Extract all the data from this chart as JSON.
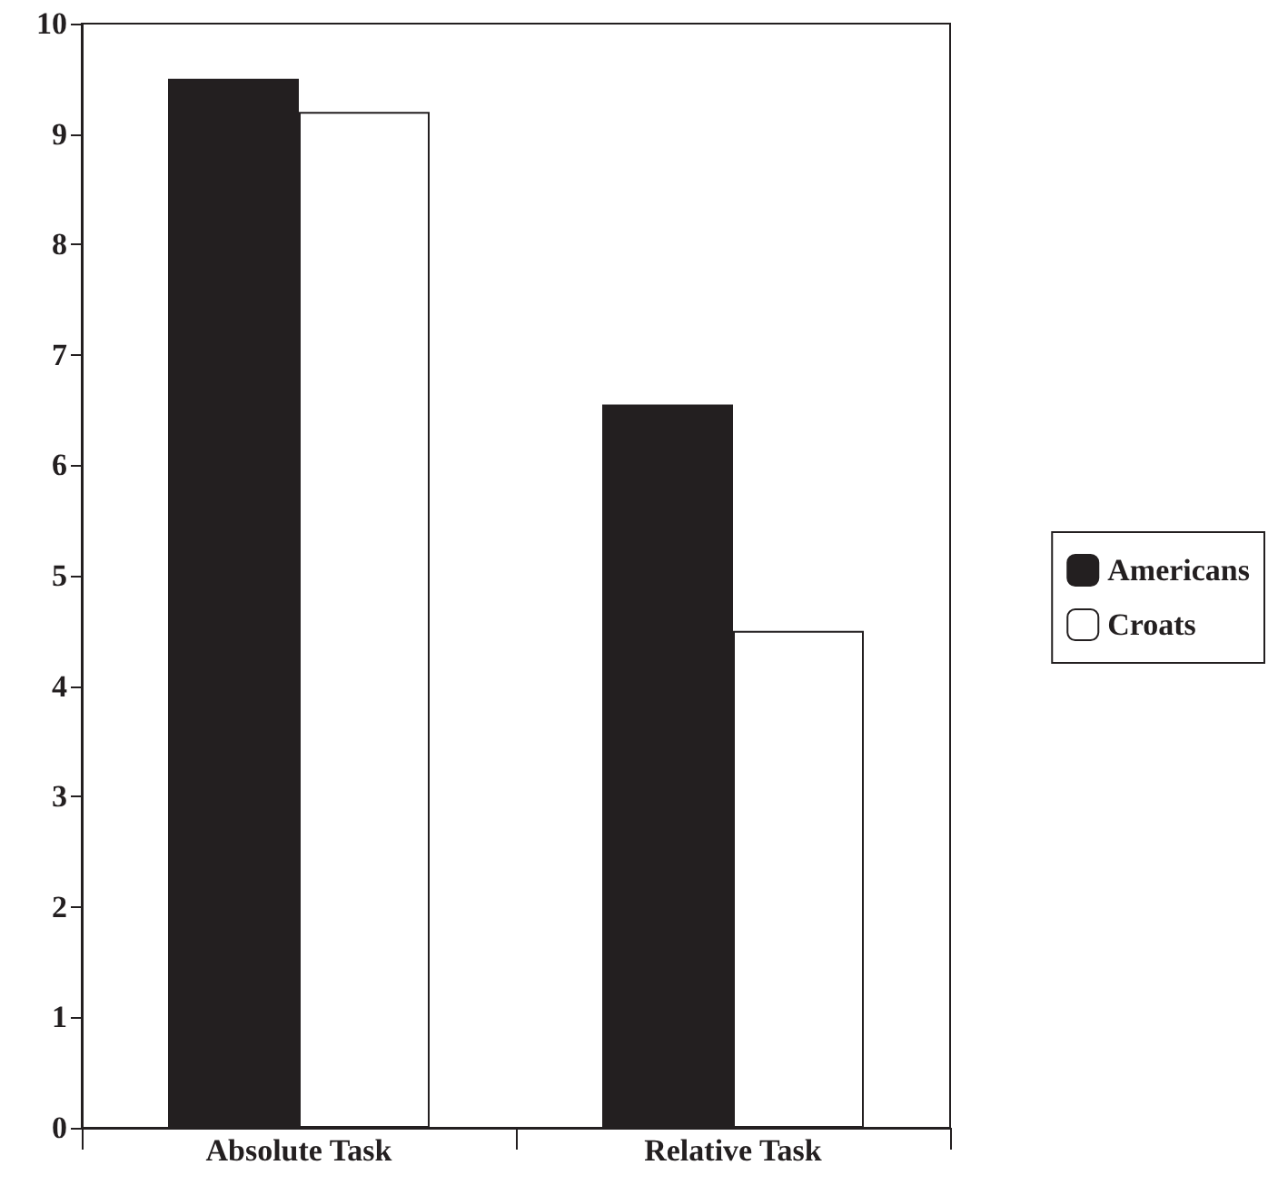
{
  "chart_data": {
    "type": "bar",
    "categories": [
      "Absolute Task",
      "Relative Task"
    ],
    "series": [
      {
        "name": "Americans",
        "color": "#231f20",
        "values": [
          9.5,
          6.55
        ]
      },
      {
        "name": "Croats",
        "color": "#ffffff",
        "values": [
          9.2,
          4.5
        ]
      }
    ],
    "ylim": [
      0,
      10
    ],
    "yticks": [
      0,
      1,
      2,
      3,
      4,
      5,
      6,
      7,
      8,
      9,
      10
    ],
    "grid": false,
    "legend": "right"
  }
}
